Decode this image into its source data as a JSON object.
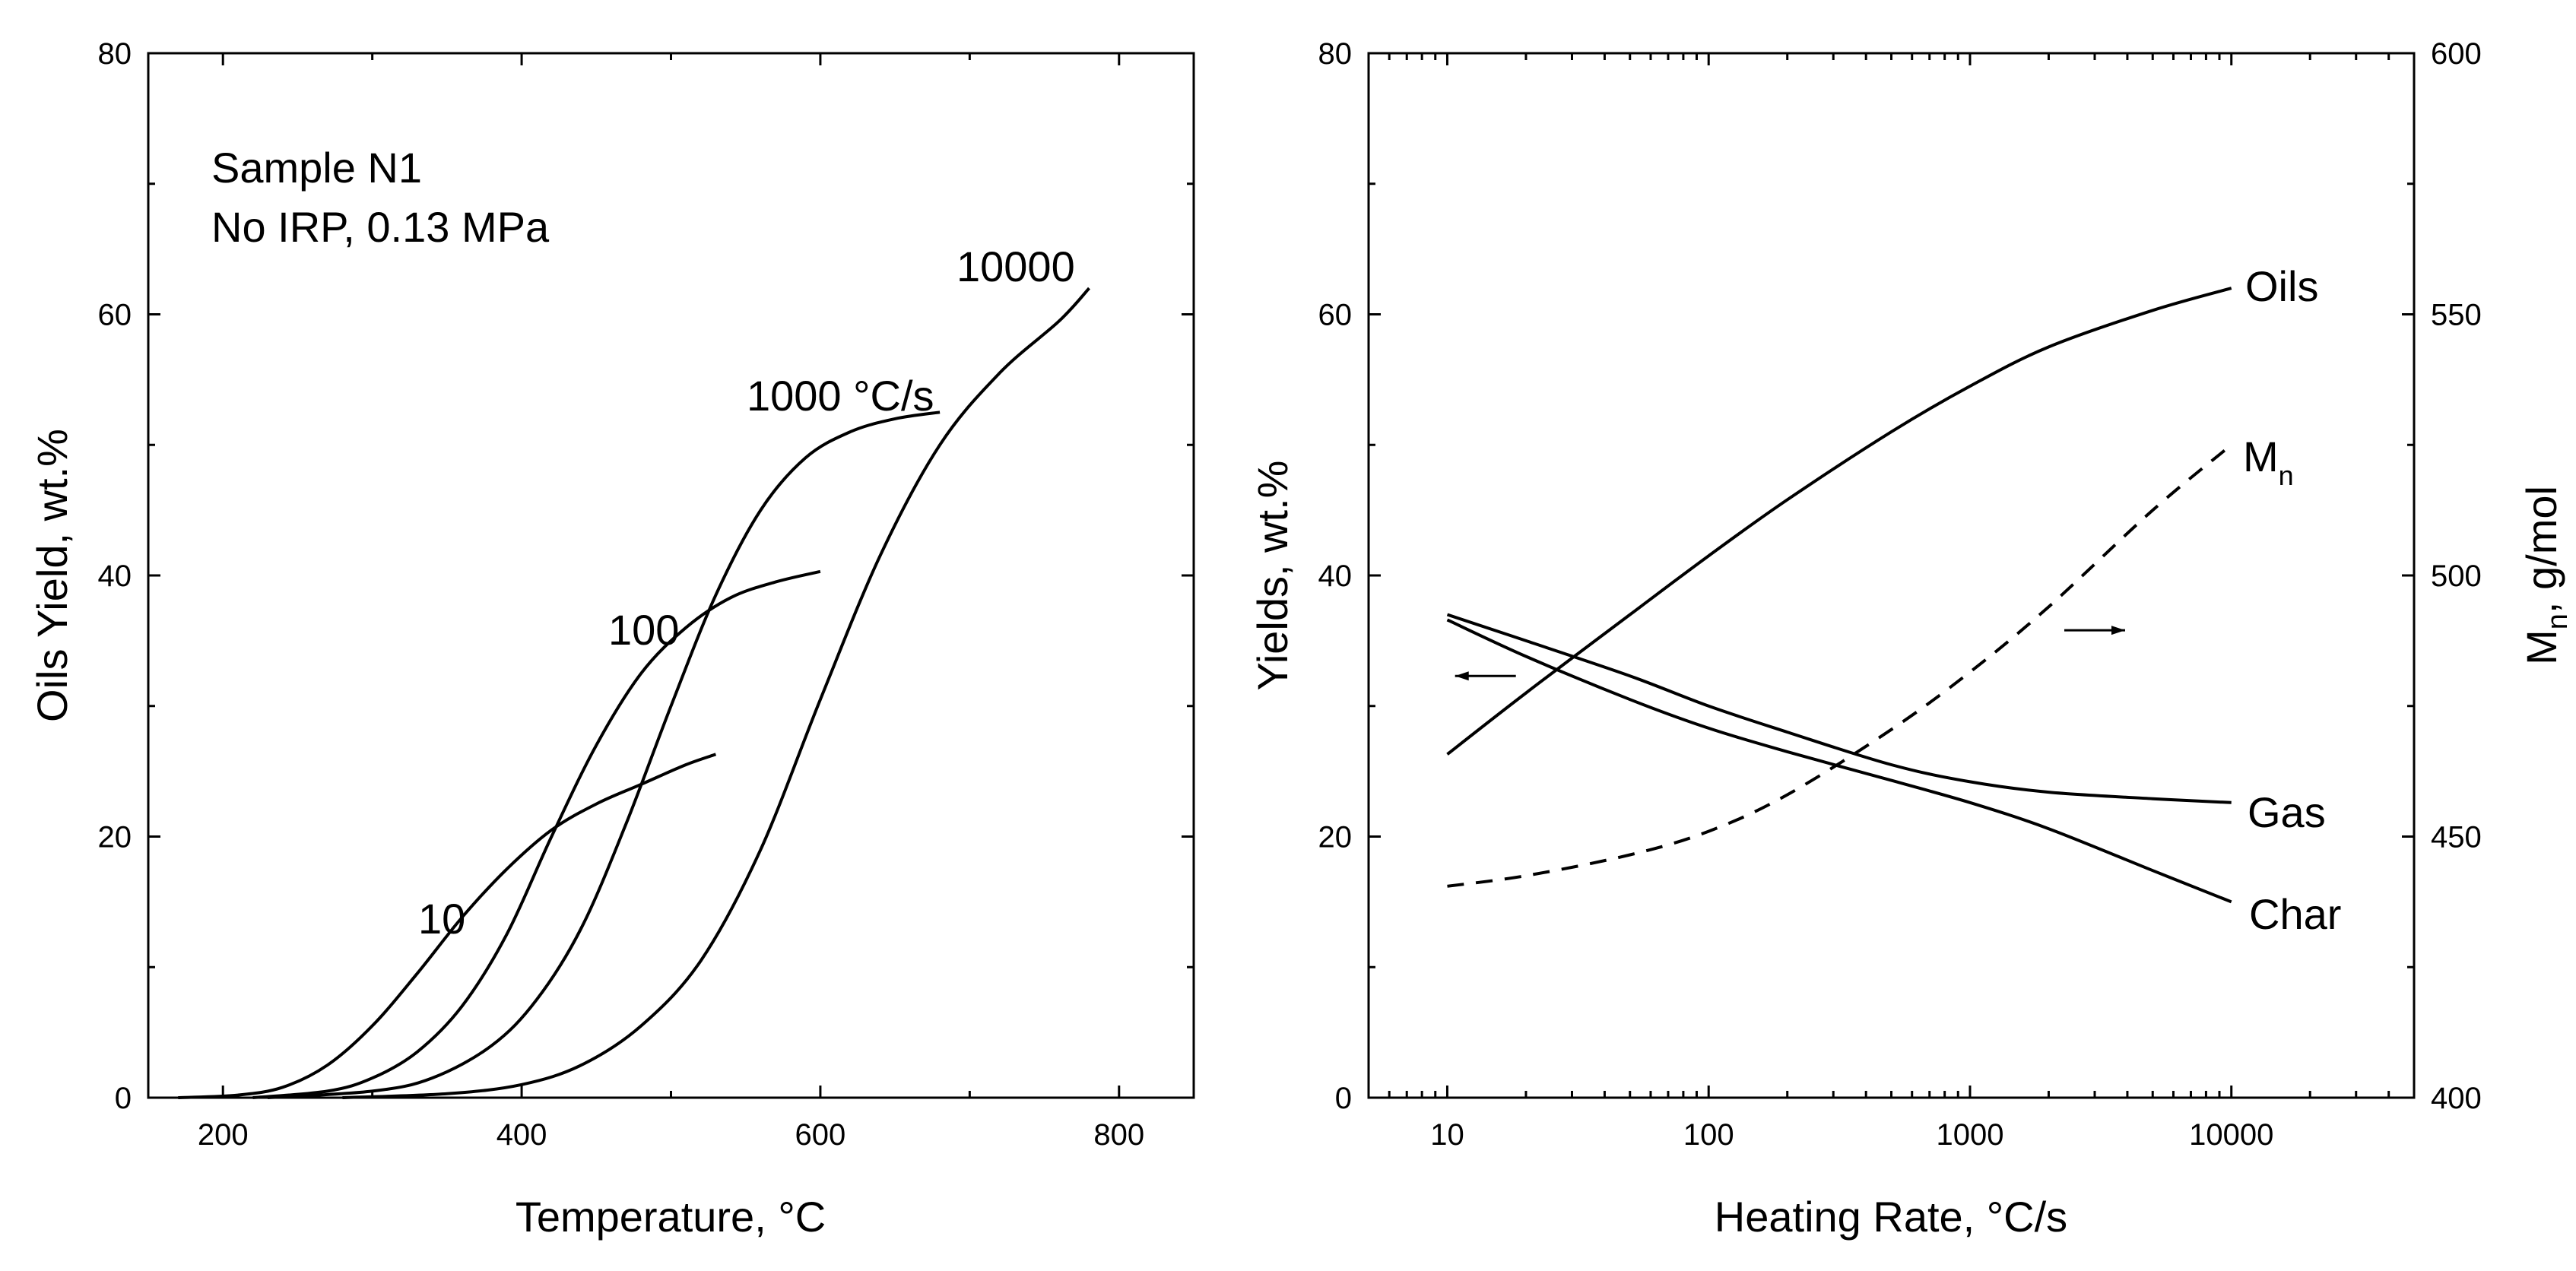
{
  "chart_data": [
    {
      "type": "line",
      "title": "",
      "xlabel": "Temperature, °C",
      "ylabel": "Oils Yield, wt.%",
      "xlim": [
        150,
        850
      ],
      "ylim": [
        0,
        80
      ],
      "grid": false,
      "xticks": [
        "200",
        "400",
        "600",
        "800"
      ],
      "yticks": [
        "0",
        "20",
        "40",
        "60",
        "80"
      ],
      "annotations": {
        "sample": "Sample N1",
        "conditions": "No IRP, 0.13 MPa"
      },
      "series": [
        {
          "name": "10",
          "label_text": "10",
          "x": [
            170,
            210,
            240,
            270,
            300,
            330,
            360,
            390,
            420,
            450,
            480,
            510,
            530
          ],
          "y": [
            0,
            0.2,
            0.8,
            2.5,
            5.5,
            9.5,
            13.8,
            17.5,
            20.5,
            22.5,
            24,
            25.5,
            26.3
          ]
        },
        {
          "name": "100",
          "label_text": "100",
          "x": [
            220,
            270,
            300,
            330,
            360,
            390,
            420,
            450,
            480,
            510,
            540,
            570,
            600
          ],
          "y": [
            0,
            0.5,
            1.5,
            3.5,
            7,
            12.5,
            20,
            27,
            32.5,
            36,
            38.3,
            39.5,
            40.3
          ]
        },
        {
          "name": "1000",
          "label_text": "1000 °C/s",
          "x": [
            230,
            300,
            340,
            380,
            410,
            440,
            470,
            500,
            530,
            560,
            590,
            620,
            650,
            680
          ],
          "y": [
            0,
            0.5,
            1.5,
            4,
            7.5,
            13,
            21,
            30,
            38.5,
            45,
            49,
            51,
            52,
            52.5
          ]
        },
        {
          "name": "10000",
          "label_text": "10000",
          "x": [
            280,
            350,
            400,
            440,
            480,
            520,
            560,
            600,
            640,
            680,
            720,
            760,
            780
          ],
          "y": [
            0,
            0.3,
            1,
            2.5,
            5.5,
            10.5,
            19,
            30.5,
            41.5,
            50,
            55.5,
            59.5,
            62
          ]
        }
      ]
    },
    {
      "type": "line",
      "title": "",
      "xlabel": "Heating Rate, °C/s",
      "ylabel": "Yields, wt.%",
      "y2label": "Mn, g/mol",
      "y2label_main": "M",
      "y2label_sub": "n",
      "y2label_rest": ", g/mol",
      "xscale": "log",
      "xlim": [
        5,
        50000
      ],
      "ylim": [
        0,
        80
      ],
      "y2lim": [
        400,
        600
      ],
      "grid": false,
      "xticks": [
        "10",
        "100",
        "1000",
        "10000"
      ],
      "yticks": [
        "0",
        "20",
        "40",
        "60",
        "80"
      ],
      "y2ticks": [
        "400",
        "450",
        "500",
        "550",
        "600"
      ],
      "series": [
        {
          "name": "Oils",
          "label_text": "Oils",
          "axis": "left",
          "x": [
            10,
            20,
            50,
            100,
            200,
            500,
            1000,
            2000,
            5000,
            10000
          ],
          "y": [
            26.3,
            31,
            37,
            41.5,
            45.8,
            51,
            54.5,
            57.5,
            60.3,
            62
          ]
        },
        {
          "name": "Gas",
          "label_text": "Gas",
          "axis": "left",
          "x": [
            10,
            20,
            50,
            100,
            200,
            500,
            1000,
            2000,
            5000,
            10000
          ],
          "y": [
            37,
            35,
            32.3,
            30,
            28,
            25.5,
            24.2,
            23.4,
            22.9,
            22.6
          ]
        },
        {
          "name": "Char",
          "label_text": "Char",
          "axis": "left",
          "x": [
            10,
            20,
            50,
            100,
            200,
            500,
            1000,
            2000,
            5000,
            10000
          ],
          "y": [
            36.6,
            33.8,
            30.5,
            28.3,
            26.5,
            24.3,
            22.6,
            20.6,
            17.4,
            15
          ]
        },
        {
          "name": "Mn",
          "label_main": "M",
          "label_sub": "n",
          "axis": "right",
          "style": "dashed",
          "x": [
            10,
            20,
            50,
            100,
            200,
            500,
            1000,
            2000,
            5000,
            10000
          ],
          "y": [
            440.5,
            442.5,
            446.5,
            451,
            458,
            470.5,
            481.5,
            494,
            512.5,
            525
          ]
        }
      ],
      "arrows": [
        {
          "points_to": "left axis",
          "at_x": 14,
          "at_y": 32.3
        },
        {
          "points_to": "right axis",
          "at_x": 3000,
          "at_y": 35.8
        }
      ]
    }
  ]
}
